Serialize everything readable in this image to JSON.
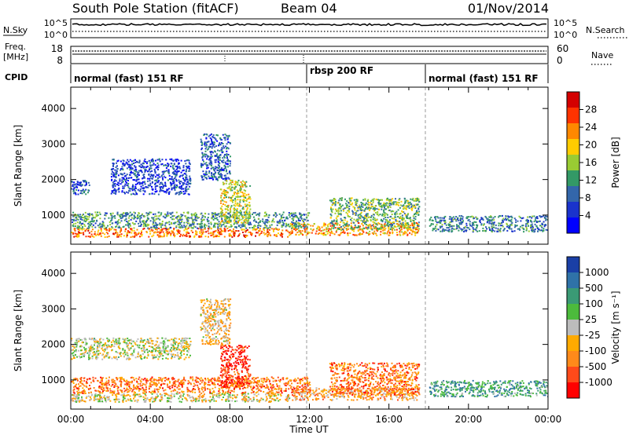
{
  "header": {
    "station": "South Pole Station (fitACF)",
    "beam": "Beam 04",
    "date": "01/Nov/2014"
  },
  "noise_panel": {
    "left_label": "N.Sky",
    "left_ticks": [
      "10^5",
      "10^0"
    ],
    "right_ticks": [
      "10^5",
      "10^0"
    ],
    "right_label": "N.Search"
  },
  "freq_panel": {
    "left_label_line1": "Freq.",
    "left_label_line2": "[MHz]",
    "left_ticks": [
      "18",
      "8"
    ],
    "right_ticks": [
      "60",
      "0"
    ],
    "right_label": "Nave"
  },
  "cpid_panel": {
    "label": "CPID",
    "segments": [
      {
        "label": "normal (fast) 151 RF",
        "start_hour": 0,
        "end_hour": 12
      },
      {
        "label": "rbsp 200 RF",
        "start_hour": 12,
        "end_hour": 18
      },
      {
        "label": "normal (fast) 151 RF",
        "start_hour": 18,
        "end_hour": 24
      }
    ]
  },
  "axes": {
    "ylabel": "Slant Range [km]",
    "xlabel": "Time UT",
    "x_ticks": [
      "00:00",
      "04:00",
      "08:00",
      "12:00",
      "16:00",
      "20:00",
      "00:00"
    ],
    "y_ticks": [
      "1000",
      "2000",
      "3000",
      "4000"
    ]
  },
  "power_colorbar": {
    "label": "Power [dB]",
    "ticks": [
      "28",
      "24",
      "20",
      "16",
      "12",
      "8",
      "4"
    ],
    "colors": [
      "#d40000",
      "#ff3300",
      "#ff8800",
      "#ffcc00",
      "#99cc33",
      "#339966",
      "#3366aa",
      "#1a33cc",
      "#0000ff"
    ]
  },
  "velocity_colorbar": {
    "label": "Velocity [m s⁻¹]",
    "ticks": [
      "1000",
      "500",
      "100",
      "25",
      "-25",
      "-100",
      "-500",
      "-1000"
    ],
    "colors": [
      "#1a3fa6",
      "#2f72a8",
      "#3a9a75",
      "#4cbb3c",
      "#bcbcbc",
      "#ffaa00",
      "#ff8a1a",
      "#ff4a1a",
      "#ff0000"
    ]
  },
  "chart_data": [
    {
      "type": "heatmap",
      "title": "Power",
      "xlabel": "Time UT",
      "ylabel": "Slant Range [km]",
      "xlim": [
        0,
        24
      ],
      "ylim": [
        180,
        4600
      ],
      "colorbar_label": "Power [dB]",
      "colorbar_range": [
        0,
        32
      ],
      "echo_regions": [
        {
          "t0": 0.0,
          "t1": 11.0,
          "r0": 400,
          "r1": 650,
          "value": 24
        },
        {
          "t0": 11.0,
          "t1": 17.5,
          "r0": 450,
          "r1": 800,
          "value": 22
        },
        {
          "t0": 18.0,
          "t1": 24.0,
          "r0": 550,
          "r1": 1000,
          "value": 10
        },
        {
          "t0": 0.0,
          "t1": 12.0,
          "r0": 650,
          "r1": 1100,
          "value": 12
        },
        {
          "t0": 0.0,
          "t1": 1.0,
          "r0": 1600,
          "r1": 2000,
          "value": 8
        },
        {
          "t0": 2.0,
          "t1": 6.0,
          "r0": 1600,
          "r1": 2600,
          "value": 6
        },
        {
          "t0": 6.5,
          "t1": 8.0,
          "r0": 2000,
          "r1": 3300,
          "value": 8
        },
        {
          "t0": 7.5,
          "t1": 9.0,
          "r0": 800,
          "r1": 2000,
          "value": 18
        },
        {
          "t0": 13.0,
          "t1": 17.5,
          "r0": 600,
          "r1": 1500,
          "value": 14
        }
      ]
    },
    {
      "type": "heatmap",
      "title": "Velocity",
      "xlabel": "Time UT",
      "ylabel": "Slant Range [km]",
      "xlim": [
        0,
        24
      ],
      "ylim": [
        180,
        4600
      ],
      "colorbar_label": "Velocity [m s⁻¹]",
      "colorbar_range": [
        -1000,
        1000
      ],
      "echo_regions": [
        {
          "t0": 0.0,
          "t1": 11.0,
          "r0": 400,
          "r1": 650,
          "value": -100
        },
        {
          "t0": 11.0,
          "t1": 17.5,
          "r0": 450,
          "r1": 800,
          "value": -300
        },
        {
          "t0": 18.0,
          "t1": 24.0,
          "r0": 550,
          "r1": 1000,
          "value": 400
        },
        {
          "t0": 0.0,
          "t1": 12.0,
          "r0": 650,
          "r1": 1100,
          "value": -500
        },
        {
          "t0": 0.0,
          "t1": 6.0,
          "r0": 1600,
          "r1": 2200,
          "value": 0
        },
        {
          "t0": 6.5,
          "t1": 8.0,
          "r0": 2000,
          "r1": 3300,
          "value": -200
        },
        {
          "t0": 7.5,
          "t1": 9.0,
          "r0": 800,
          "r1": 2000,
          "value": -800
        },
        {
          "t0": 13.0,
          "t1": 17.5,
          "r0": 600,
          "r1": 1500,
          "value": -500
        }
      ]
    }
  ]
}
